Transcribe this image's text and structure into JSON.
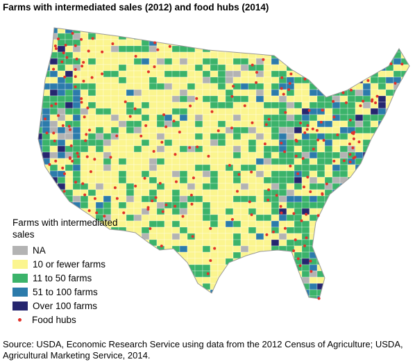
{
  "header": {
    "title": "Farms with intermediated sales (2012) and food hubs (2014)"
  },
  "legend": {
    "title": "Farms with intermediated sales",
    "items": [
      {
        "label": "NA",
        "color": "#b3b3b3",
        "shape": "square"
      },
      {
        "label": "10 or fewer farms",
        "color": "#fbf58f",
        "shape": "square"
      },
      {
        "label": "11 to 50 farms",
        "color": "#3bb36a",
        "shape": "square"
      },
      {
        "label": "51 to 100 farms",
        "color": "#2c7bab",
        "shape": "square"
      },
      {
        "label": "Over 100 farms",
        "color": "#26266f",
        "shape": "square"
      },
      {
        "label": "Food hubs",
        "color": "#e2312a",
        "shape": "dot"
      }
    ]
  },
  "source": "Source: USDA, Economic Research Service using data from the 2012 Census of Agriculture; USDA, Agricultural Marketing Service, 2014."
}
